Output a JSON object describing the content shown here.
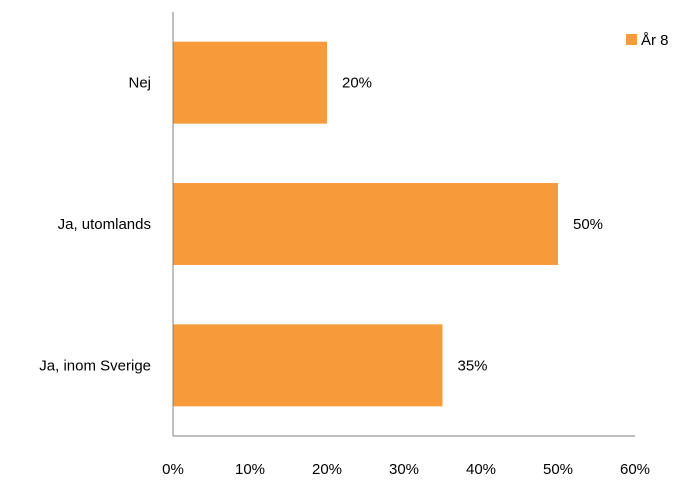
{
  "chart_data": {
    "type": "bar",
    "orientation": "horizontal",
    "categories": [
      "Nej",
      "Ja, utomlands",
      "Ja, inom Sverige"
    ],
    "series": [
      {
        "name": "År 8",
        "values": [
          20,
          50,
          35
        ],
        "color": "#F79A3A"
      }
    ],
    "data_labels": [
      "20%",
      "50%",
      "35%"
    ],
    "x_ticks": [
      "0%",
      "10%",
      "20%",
      "30%",
      "40%",
      "50%",
      "60%"
    ],
    "xlim": [
      0,
      60
    ],
    "x_unit": "%",
    "grid": false,
    "legend_position": "top-right"
  }
}
